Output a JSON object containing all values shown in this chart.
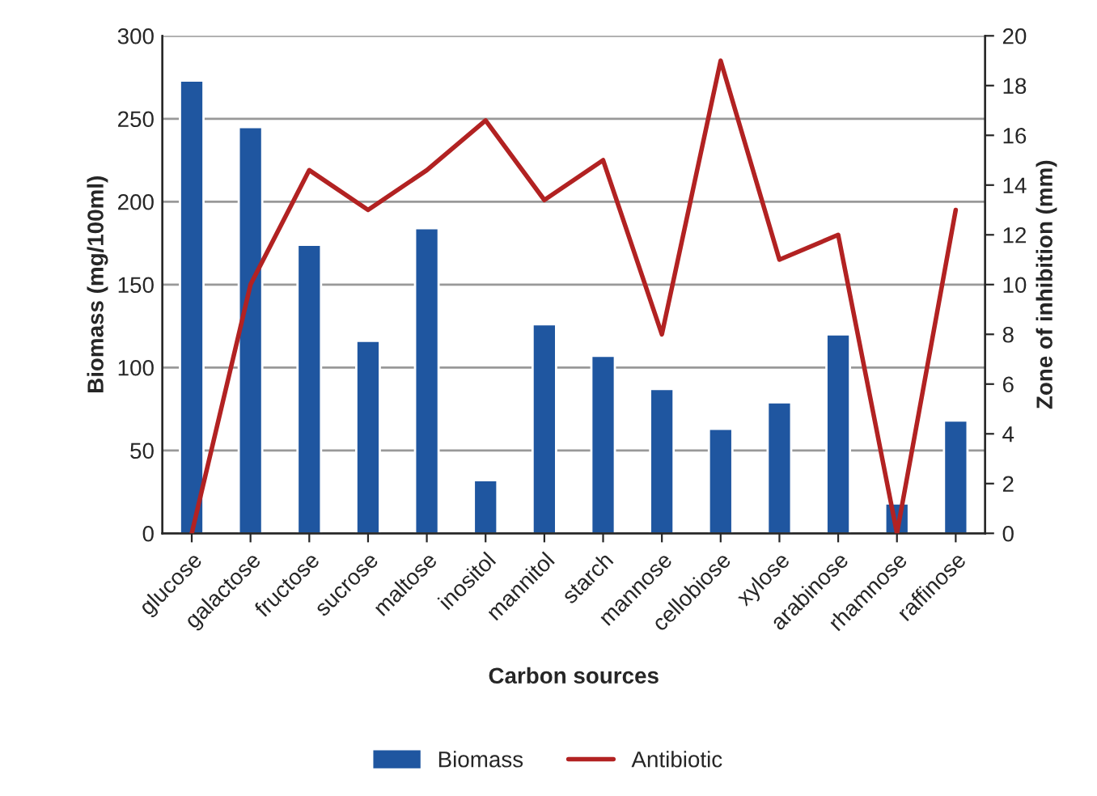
{
  "chart_data": {
    "type": "bar",
    "xlabel": "Carbon sources",
    "ylabel": "Biomass (mg/100ml)",
    "y2label": "Zone of inhibition (mm)",
    "categories": [
      "glucose",
      "galactose",
      "fructose",
      "sucrose",
      "maltose",
      "inositol",
      "mannitol",
      "starch",
      "mannose",
      "cellobiose",
      "xylose",
      "arabinose",
      "rhamnose",
      "raffinose"
    ],
    "series": [
      {
        "name": "Biomass",
        "color": "#1f56a0",
        "values": [
          273,
          245,
          174,
          116,
          184,
          32,
          126,
          107,
          87,
          63,
          79,
          120,
          18,
          68
        ]
      },
      {
        "name": "Antibiotic",
        "type": "line",
        "axis": "y2",
        "color": "#b22222",
        "values": [
          0,
          10,
          14.6,
          13,
          14.6,
          16.6,
          13.4,
          15,
          8,
          19,
          11,
          12,
          0,
          13
        ]
      }
    ],
    "ylim": [
      0,
      300
    ],
    "yticks": [
      0,
      50,
      100,
      150,
      200,
      250,
      300
    ],
    "y2lim": [
      0,
      20
    ],
    "y2ticks": [
      0,
      2,
      4,
      6,
      8,
      10,
      12,
      14,
      16,
      18,
      20
    ],
    "grid": "y",
    "legend": "bottom"
  }
}
